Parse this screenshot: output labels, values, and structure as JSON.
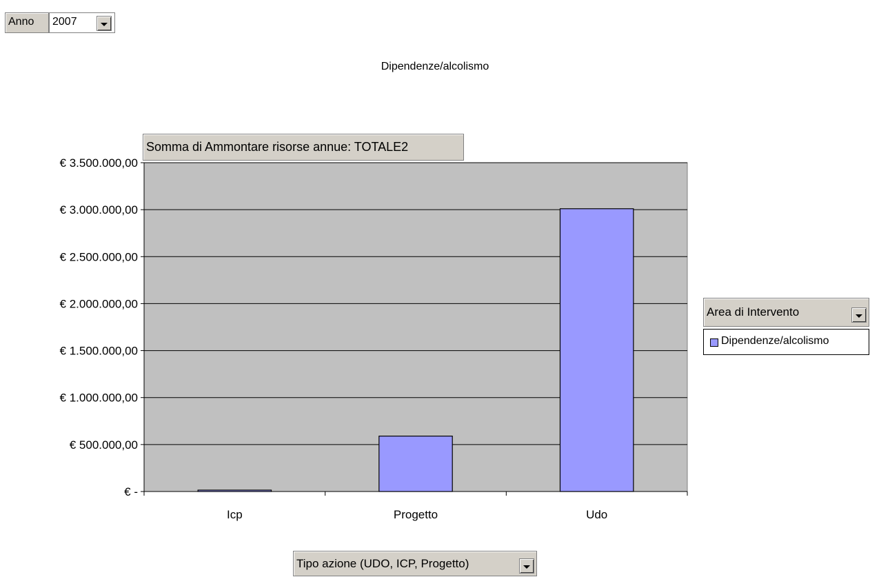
{
  "page_filter": {
    "label": "Anno",
    "value": "2007"
  },
  "data_field": {
    "label": "Somma di Ammontare risorse annue: TOTALE2"
  },
  "series_field": {
    "label": "Area di Intervento"
  },
  "category_field": {
    "label": "Tipo azione (UDO, ICP, Progetto)"
  },
  "legend": {
    "items": [
      {
        "label": "Dipendenze/alcolismo",
        "color": "#9999ff"
      }
    ]
  },
  "chart_data": {
    "type": "bar",
    "title": "Dipendenze/alcolismo",
    "categories": [
      "Icp",
      "Progetto",
      "Udo"
    ],
    "series": [
      {
        "name": "Dipendenze/alcolismo",
        "values": [
          15000,
          590000,
          3010000
        ],
        "color": "#9999ff"
      }
    ],
    "ylim": [
      0,
      3500000
    ],
    "yticks": [
      0,
      500000,
      1000000,
      1500000,
      2000000,
      2500000,
      3000000,
      3500000
    ],
    "ytick_labels": [
      "€ -",
      "€ 500.000,00",
      "€ 1.000.000,00",
      "€ 1.500.000,00",
      "€ 2.000.000,00",
      "€ 2.500.000,00",
      "€ 3.000.000,00",
      "€ 3.500.000,00"
    ],
    "plot_background": "#c0c0c0",
    "grid": true,
    "legend_position": "right"
  }
}
